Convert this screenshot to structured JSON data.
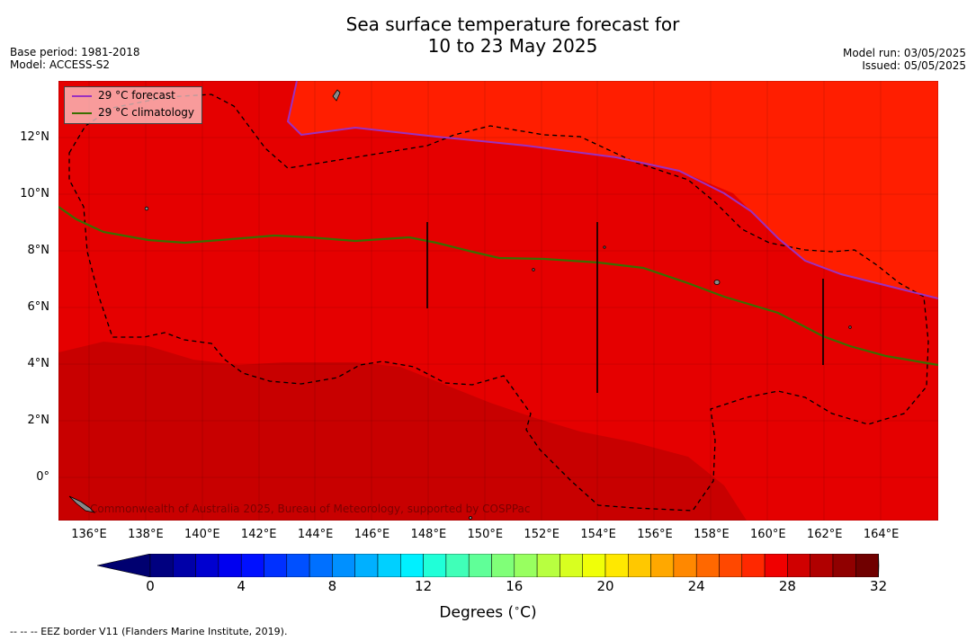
{
  "header": {
    "title_line1": "Sea surface temperature forecast for",
    "title_line2": "10 to 23 May 2025",
    "base_period": "Base period: 1981-2018",
    "model": "Model: ACCESS-S2",
    "model_run": "Model run: 03/05/2025",
    "issued": "Issued: 05/05/2025"
  },
  "map": {
    "lon_ticks": [
      "136°E",
      "138°E",
      "140°E",
      "142°E",
      "144°E",
      "146°E",
      "148°E",
      "150°E",
      "152°E",
      "154°E",
      "156°E",
      "158°E",
      "160°E",
      "162°E",
      "164°E"
    ],
    "lat_ticks": [
      "12°N",
      "10°N",
      "8°N",
      "6°N",
      "4°N",
      "2°N",
      "0°"
    ],
    "copyright": "Commonwealth of Australia 2025, Bureau of Meteorology, supported by COSPPac",
    "colors": {
      "hot": "#e50000",
      "hotter": "#ff1e00",
      "warm_south": "#c80000",
      "forecast_line": "#9b30c0",
      "climatology_line": "#3a6e00"
    }
  },
  "legend": {
    "forecast": "29 °C  forecast",
    "climatology": "29 °C  climatology"
  },
  "colorbar": {
    "ticks": [
      "0",
      "4",
      "8",
      "12",
      "16",
      "20",
      "24",
      "28",
      "32"
    ],
    "label": "Degrees (",
    "label_unit": "C)",
    "colors": [
      "#000080",
      "#0000a8",
      "#0000d0",
      "#0000f0",
      "#0010ff",
      "#0030ff",
      "#0050ff",
      "#0070ff",
      "#0090ff",
      "#00b0ff",
      "#00d0ff",
      "#00f0ff",
      "#20ffd8",
      "#40ffb8",
      "#60ff98",
      "#80ff78",
      "#98ff60",
      "#b8ff40",
      "#d8ff20",
      "#f0ff08",
      "#ffe800",
      "#ffc800",
      "#ffa800",
      "#ff8800",
      "#ff6800",
      "#ff4800",
      "#ff2800",
      "#f00000",
      "#d00000",
      "#b00000",
      "#900000",
      "#700000"
    ]
  },
  "footnote": "--  --  -- EEZ border V11 (Flanders Marine Institute, 2019)."
}
